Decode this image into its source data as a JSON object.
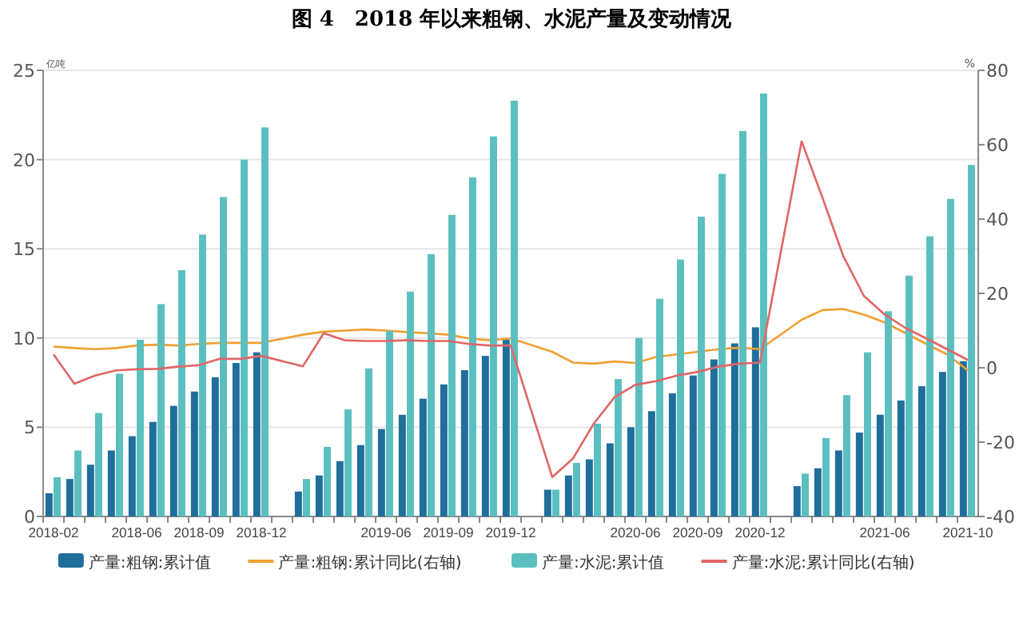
{
  "chart_data": {
    "type": "bar",
    "title": "图 4　2018 年以来粗钢、水泥产量及变动情况",
    "ylabel": "亿吨",
    "y2label": "%",
    "categories": [
      "2018-02",
      null,
      null,
      null,
      "2018-06",
      null,
      null,
      "2018-09",
      null,
      null,
      "2018-12",
      null,
      null,
      null,
      null,
      null,
      "2019-06",
      null,
      null,
      "2019-09",
      null,
      null,
      "2019-12",
      null,
      null,
      null,
      null,
      null,
      "2020-06",
      null,
      null,
      "2020-09",
      null,
      null,
      "2020-12",
      null,
      null,
      null,
      null,
      null,
      "2021-06",
      null,
      null,
      null,
      "2021-10"
    ],
    "ylim": [
      0,
      25
    ],
    "yticks": [
      0,
      5,
      10,
      15,
      20,
      25
    ],
    "y2lim": [
      -40,
      80
    ],
    "y2ticks": [
      -40,
      -20,
      0,
      20,
      40,
      60,
      80
    ],
    "grid": "y",
    "legend": "bottom",
    "series": [
      {
        "name": "产量:粗钢:累计值",
        "color": "#1f6e9c",
        "values": [
          1.3,
          2.1,
          2.9,
          3.7,
          4.5,
          5.3,
          6.2,
          7.0,
          7.8,
          8.6,
          9.2,
          null,
          1.4,
          2.3,
          3.1,
          4.0,
          4.9,
          5.7,
          6.6,
          7.4,
          8.2,
          9.0,
          9.9,
          null,
          1.5,
          2.3,
          3.2,
          4.1,
          5.0,
          5.9,
          6.9,
          7.9,
          8.8,
          9.7,
          10.6,
          null,
          1.7,
          2.7,
          3.7,
          4.7,
          5.7,
          6.5,
          7.3,
          8.1,
          8.7
        ]
      },
      {
        "name": "产量:粗钢:累计同比(右轴)",
        "type": "line",
        "axis": "y2",
        "color": "#f0a030",
        "values": [
          5.7,
          5.3,
          5.0,
          5.3,
          6.0,
          6.2,
          6.0,
          6.4,
          6.7,
          6.7,
          6.7,
          null,
          8.9,
          9.7,
          10.0,
          10.3,
          10.0,
          9.6,
          9.3,
          8.9,
          7.9,
          7.4,
          7.9,
          null,
          4.3,
          1.4,
          1.1,
          1.7,
          1.3,
          2.9,
          3.6,
          4.3,
          5.0,
          5.4,
          5.0,
          null,
          12.9,
          15.5,
          15.8,
          14.3,
          12.2,
          9.3,
          6.4,
          3.6,
          -0.7
        ]
      },
      {
        "name": "产量:水泥:累计值",
        "color": "#5bbfc0",
        "values": [
          2.2,
          3.7,
          5.8,
          8.0,
          9.9,
          11.9,
          13.8,
          15.8,
          17.9,
          20.0,
          21.8,
          null,
          2.1,
          3.9,
          6.0,
          8.3,
          10.4,
          12.6,
          14.7,
          16.9,
          19.0,
          21.3,
          23.3,
          null,
          1.5,
          3.0,
          5.2,
          7.7,
          10.0,
          12.2,
          14.4,
          16.8,
          19.2,
          21.6,
          23.7,
          null,
          2.4,
          4.4,
          6.8,
          9.2,
          11.5,
          13.5,
          15.7,
          17.8,
          19.7
        ]
      },
      {
        "name": "产量:水泥:累计同比(右轴)",
        "type": "line",
        "axis": "y2",
        "color": "#e06666",
        "values": [
          3.6,
          -4.3,
          -2.1,
          -0.7,
          -0.4,
          -0.3,
          0.3,
          0.7,
          2.4,
          2.4,
          3.2,
          null,
          0.4,
          9.3,
          7.4,
          7.2,
          7.2,
          7.4,
          7.2,
          7.2,
          6.4,
          6.0,
          6.0,
          null,
          -29.4,
          -24.4,
          -15,
          -7.9,
          -4.6,
          -3.6,
          -2.1,
          -1.1,
          0.3,
          1.1,
          1.4,
          null,
          60.9,
          45.8,
          30.1,
          19.3,
          14.3,
          10.7,
          7.9,
          5.0,
          2.1
        ]
      }
    ]
  }
}
